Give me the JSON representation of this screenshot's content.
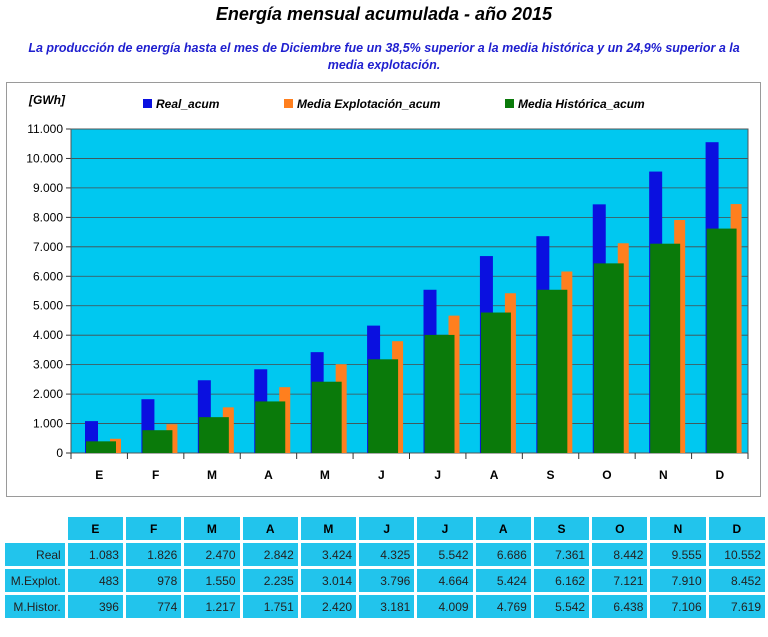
{
  "title": "Energía mensual acumulada - año 2015",
  "subtitle": "La producción de energía hasta el mes de Diciembre fue un 38,5%  superior a la media histórica y un 24,9%  superior a la media explotación.",
  "colors": {
    "plot_bg": "#00c8f0",
    "real": "#0a10e0",
    "explot": "#ff7f1e",
    "historica": "#0a7a0a",
    "table_cell": "#22c4ec",
    "subtitle": "#1f1fcf"
  },
  "chart_data": {
    "type": "bar",
    "categories": [
      "E",
      "F",
      "M",
      "A",
      "M",
      "J",
      "J",
      "A",
      "S",
      "O",
      "N",
      "D"
    ],
    "series": [
      {
        "name": "Real_acum",
        "values": [
          1083,
          1826,
          2470,
          2842,
          3424,
          4325,
          5542,
          6686,
          7361,
          8442,
          9555,
          10552
        ]
      },
      {
        "name": "Media Explotación_acum",
        "values": [
          483,
          978,
          1550,
          2235,
          3014,
          3796,
          4664,
          5424,
          6162,
          7121,
          7910,
          8452
        ]
      },
      {
        "name": "Media Histórica_acum",
        "values": [
          396,
          774,
          1217,
          1751,
          2420,
          3181,
          4009,
          4769,
          5542,
          6438,
          7106,
          7619
        ]
      }
    ],
    "ylabel": "[GWh]",
    "ylim": [
      0,
      11000
    ],
    "yticks": [
      0,
      1000,
      2000,
      3000,
      4000,
      5000,
      6000,
      7000,
      8000,
      9000,
      10000,
      11000
    ],
    "ytick_labels": [
      "0",
      "1.000",
      "2.000",
      "3.000",
      "4.000",
      "5.000",
      "6.000",
      "7.000",
      "8.000",
      "9.000",
      "10.000",
      "11.000"
    ],
    "grid": true,
    "legend_position": "top"
  },
  "table": {
    "headers": [
      "E",
      "F",
      "M",
      "A",
      "M",
      "J",
      "J",
      "A",
      "S",
      "O",
      "N",
      "D"
    ],
    "rows": [
      {
        "label": "Real",
        "values": [
          "1.083",
          "1.826",
          "2.470",
          "2.842",
          "3.424",
          "4.325",
          "5.542",
          "6.686",
          "7.361",
          "8.442",
          "9.555",
          "10.552"
        ]
      },
      {
        "label": "M.Explot.",
        "values": [
          "483",
          "978",
          "1.550",
          "2.235",
          "3.014",
          "3.796",
          "4.664",
          "5.424",
          "6.162",
          "7.121",
          "7.910",
          "8.452"
        ]
      },
      {
        "label": "M.Histor.",
        "values": [
          "396",
          "774",
          "1.217",
          "1.751",
          "2.420",
          "3.181",
          "4.009",
          "4.769",
          "5.542",
          "6.438",
          "7.106",
          "7.619"
        ]
      }
    ]
  }
}
